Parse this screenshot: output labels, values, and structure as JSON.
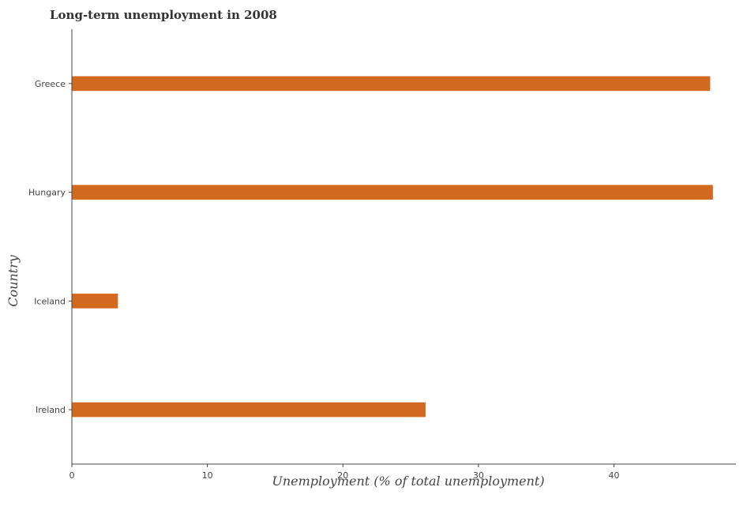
{
  "chart_data": {
    "type": "bar",
    "orientation": "horizontal",
    "title": "Long-term unemployment in 2008",
    "xlabel": "Unemployment (% of total unemployment)",
    "ylabel": "Country",
    "categories": [
      "Greece",
      "Hungary",
      "Iceland",
      "Ireland"
    ],
    "values": [
      47.1,
      47.3,
      3.4,
      26.1
    ],
    "xlim": [
      0,
      49
    ],
    "xticks": [
      0,
      10,
      20,
      30,
      40
    ],
    "bar_color": "#d2691e",
    "grid": false,
    "legend": "none"
  }
}
